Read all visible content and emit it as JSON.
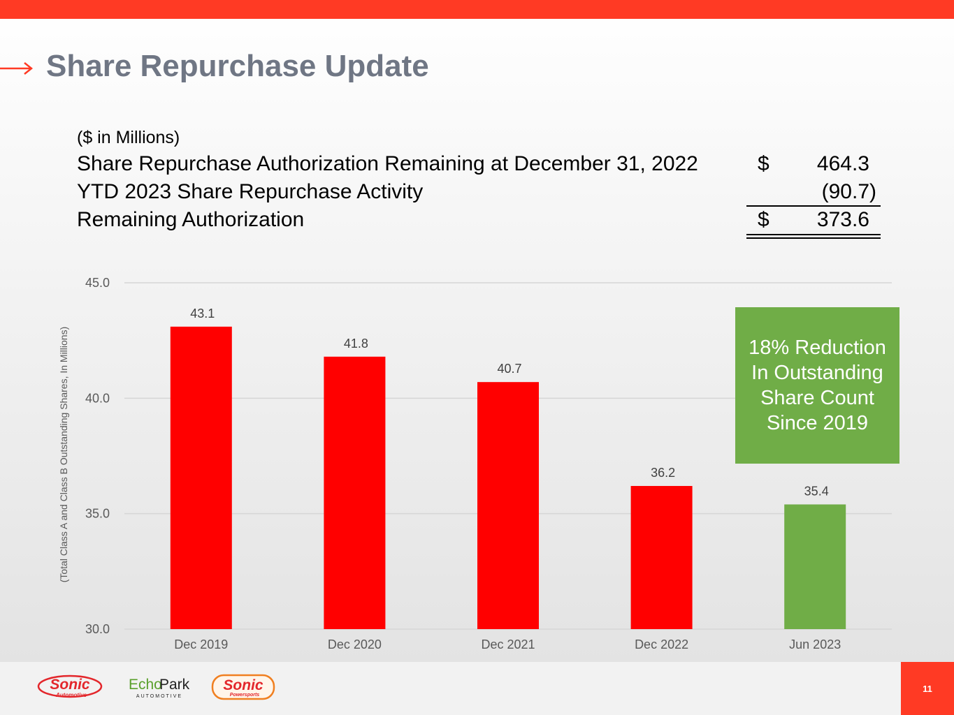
{
  "title": "Share Repurchase Update",
  "table": {
    "note": "($ in Millions)",
    "rows": [
      {
        "label": "Share Repurchase Authorization Remaining at December 31, 2022",
        "currency": "$",
        "amount": "464.3"
      },
      {
        "label": "YTD 2023 Share Repurchase Activity",
        "currency": "",
        "amount": "(90.7)"
      },
      {
        "label": "Remaining Authorization",
        "currency": "$",
        "amount": "373.6"
      }
    ]
  },
  "chart_data": {
    "type": "bar",
    "title": "",
    "xlabel": "",
    "ylabel": "(Total Class A and Class B Outstanding Shares, In Millions)",
    "categories": [
      "Dec 2019",
      "Dec 2020",
      "Dec 2021",
      "Dec 2022",
      "Jun 2023"
    ],
    "values": [
      43.1,
      41.8,
      40.7,
      36.2,
      35.4
    ],
    "value_labels": [
      "43.1",
      "41.8",
      "40.7",
      "36.2",
      "35.4"
    ],
    "bar_colors": [
      "#ff0000",
      "#ff0000",
      "#ff0000",
      "#ff0000",
      "#70ad47"
    ],
    "ylim": [
      30.0,
      45.0
    ],
    "yticks": [
      "30.0",
      "35.0",
      "40.0",
      "45.0"
    ],
    "grid": true
  },
  "callout": {
    "lines": [
      "18% Reduction",
      "In Outstanding",
      "Share Count",
      "Since 2019"
    ]
  },
  "logos": {
    "sonic_automotive": {
      "name": "Sonic",
      "sub": "Automotive"
    },
    "echopark": {
      "echo": "Echo",
      "park": "Park",
      "sub": "AUTOMOTIVE"
    },
    "sonic_powersports": {
      "name": "Sonic",
      "sub": "Powersports"
    }
  },
  "page_number": "11",
  "colors": {
    "accent": "#ff3a24",
    "bar_red": "#ff0000",
    "bar_green": "#70ad47",
    "title": "#6f7684"
  }
}
